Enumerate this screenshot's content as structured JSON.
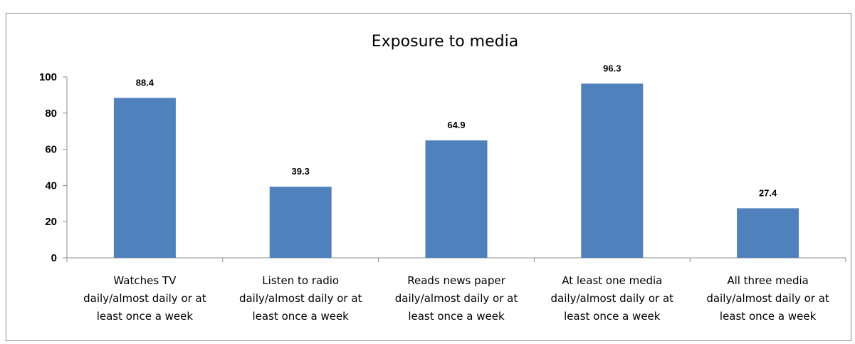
{
  "chart_data": {
    "type": "bar",
    "title": "Exposure to media",
    "xlabel": "",
    "ylabel": "",
    "ylim": [
      0,
      100
    ],
    "yticks": [
      0,
      20,
      40,
      60,
      80,
      100
    ],
    "categories": [
      [
        "Watches TV",
        "daily/almost daily or at",
        "least once a week"
      ],
      [
        "Listen to radio",
        "daily/almost daily or at",
        "least once a week"
      ],
      [
        "Reads news paper",
        "daily/almost daily or at",
        "least once a week"
      ],
      [
        "At least one media",
        "daily/almost daily or at",
        "least once a week"
      ],
      [
        "All three media",
        "daily/almost daily or at",
        "least once a week"
      ]
    ],
    "values": [
      88.4,
      39.3,
      64.9,
      96.3,
      27.4
    ],
    "value_labels": [
      "88.4",
      "39.3",
      "64.9",
      "96.3",
      "27.4"
    ],
    "bar_color": "#4f81bd",
    "grid": false,
    "legend": "none"
  }
}
